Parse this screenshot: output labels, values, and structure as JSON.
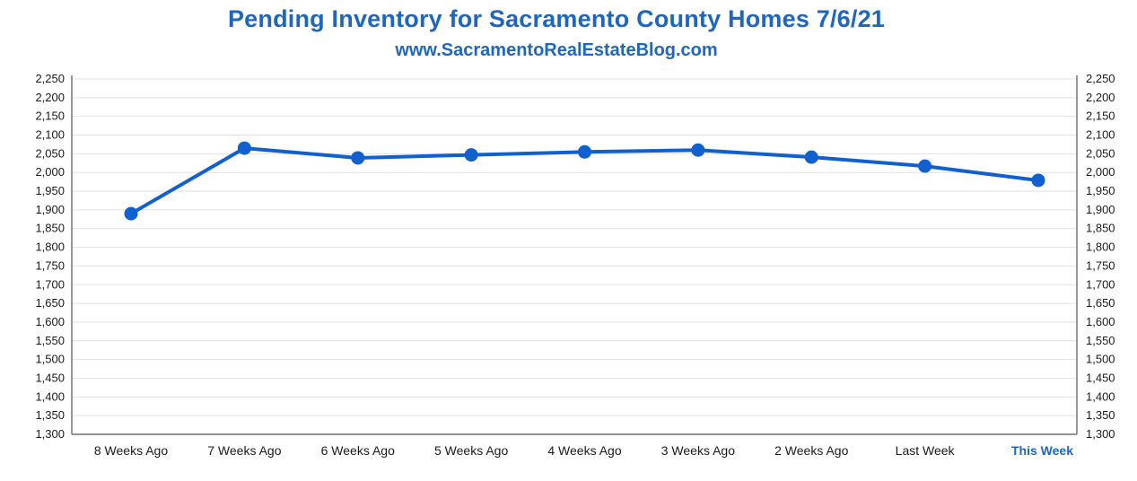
{
  "chart_data": {
    "type": "line",
    "title": "Pending Inventory for Sacramento County Homes 7/6/21",
    "subtitle": "www.SacramentoRealEstateBlog.com",
    "categories": [
      "8 Weeks Ago",
      "7 Weeks Ago",
      "6 Weeks Ago",
      "5 Weeks Ago",
      "4 Weeks Ago",
      "3 Weeks Ago",
      "2 Weeks Ago",
      "Last Week",
      "This Week"
    ],
    "highlight_category": "This Week",
    "series": [
      {
        "values": [
          1890,
          2065,
          2039,
          2047,
          2055,
          2060,
          2041,
          2017,
          1979
        ]
      }
    ],
    "ylim": [
      1300,
      2250
    ],
    "yticks": [
      "1,300",
      "1,350",
      "1,400",
      "1,450",
      "1,500",
      "1,550",
      "1,600",
      "1,650",
      "1,700",
      "1,750",
      "1,800",
      "1,850",
      "1,900",
      "1,950",
      "2,000",
      "2,050",
      "2,100",
      "2,150",
      "2,200",
      "2,250"
    ],
    "ytick_values": [
      1300,
      1350,
      1400,
      1450,
      1500,
      1550,
      1600,
      1650,
      1700,
      1750,
      1800,
      1850,
      1900,
      1950,
      2000,
      2050,
      2100,
      2150,
      2200,
      2250
    ],
    "grid": true,
    "dual_y_axis": true,
    "xlabel": "",
    "ylabel": "",
    "colors": {
      "line": "#1160cf",
      "title": "#1f66c1",
      "grid": "#e2e2e2",
      "axis": "#555555"
    }
  }
}
